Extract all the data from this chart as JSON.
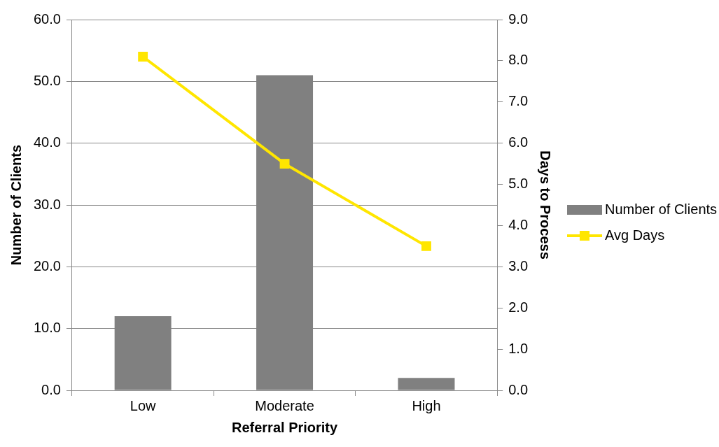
{
  "chart_data": {
    "type": "bar",
    "categories": [
      "Low",
      "Moderate",
      "High"
    ],
    "xlabel": "Referral Priority",
    "ylabel": "Number of Clients",
    "y2label": "Days to Process",
    "series": [
      {
        "name": "Number of Clients",
        "color": "#808080",
        "values": [
          12,
          51,
          2
        ]
      },
      {
        "name": "Avg Days",
        "type": "line",
        "axis": "y2",
        "color": "#ffe600",
        "values": [
          8.1,
          5.5,
          3.5
        ],
        "marker": "square"
      }
    ],
    "ylim": [
      0,
      60
    ],
    "yticks": [
      {
        "value": 0,
        "label": "0.0"
      },
      {
        "value": 10,
        "label": "10.0"
      },
      {
        "value": 20,
        "label": "20.0"
      },
      {
        "value": 30,
        "label": "30.0"
      },
      {
        "value": 40,
        "label": "40.0"
      },
      {
        "value": 50,
        "label": "50.0"
      },
      {
        "value": 60,
        "label": "60.0"
      }
    ],
    "y2lim": [
      0,
      9
    ],
    "y2ticks": [
      {
        "value": 0,
        "label": "0.0"
      },
      {
        "value": 1,
        "label": "1.0"
      },
      {
        "value": 2,
        "label": "2.0"
      },
      {
        "value": 3,
        "label": "3.0"
      },
      {
        "value": 4,
        "label": "4.0"
      },
      {
        "value": 5,
        "label": "5.0"
      },
      {
        "value": 6,
        "label": "6.0"
      },
      {
        "value": 7,
        "label": "7.0"
      },
      {
        "value": 8,
        "label": "8.0"
      },
      {
        "value": 9,
        "label": "9.0"
      }
    ],
    "grid": "y",
    "legend": "right"
  }
}
